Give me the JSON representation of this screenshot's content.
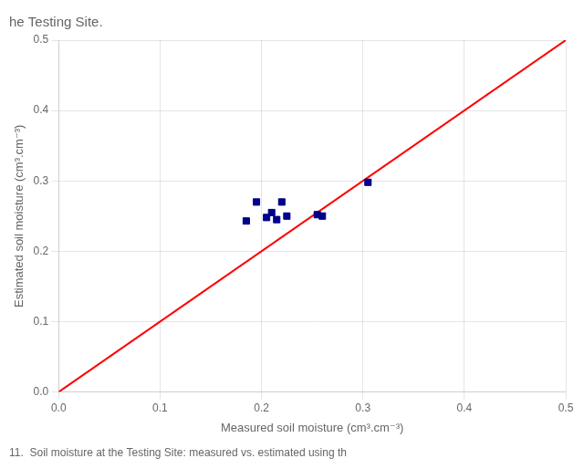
{
  "chart_data": {
    "type": "scatter",
    "title": "he Testing Site.",
    "subtitle": "11.  Soil moisture at the Testing Site: measured vs. estimated using th",
    "x_label": "Measured soil moisture (cm³.cm⁻³)",
    "y_label": "Estimated soil moisture (cm³.cm⁻³)",
    "series": [
      {
        "type": "scatter",
        "color": "#00008B",
        "marker": "square",
        "x": [
          0.185,
          0.195,
          0.205,
          0.21,
          0.215,
          0.22,
          0.225,
          0.255,
          0.26,
          0.305
        ],
        "values": [
          0.243,
          0.27,
          0.248,
          0.255,
          0.245,
          0.27,
          0.25,
          0.252,
          0.25,
          0.298
        ]
      },
      {
        "type": "line",
        "color": "#ff0000",
        "x": [
          0.0,
          0.5
        ],
        "values": [
          0.0,
          0.5
        ]
      }
    ],
    "xlim": [
      0.0,
      0.5
    ],
    "ylim": [
      0.0,
      0.5
    ],
    "xticks": [
      {
        "value": 0.0,
        "label": "0.0"
      },
      0.1,
      0.2,
      0.3,
      0.4,
      0.5
    ],
    "yticks": [
      {
        "value": 0.0,
        "label": "0.0"
      },
      0.1,
      0.2,
      0.3,
      0.4,
      0.5
    ],
    "grid": true
  }
}
